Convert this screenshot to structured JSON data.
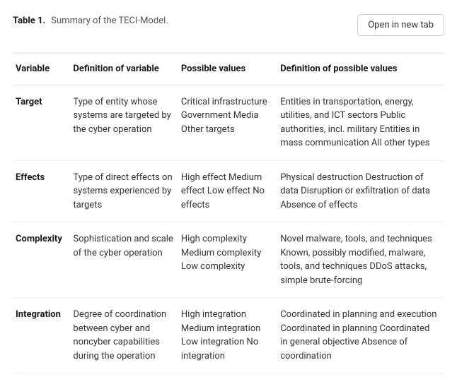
{
  "header": {
    "table_label": "Table 1.",
    "caption": "Summary of the TECI-Model.",
    "open_button": "Open in new tab"
  },
  "table": {
    "columns": [
      "Variable",
      "Definition of variable",
      "Possible values",
      "Definition of possible values"
    ],
    "rows": [
      {
        "variable": "Target",
        "definition": "Type of entity whose systems are targeted by the cyber operation",
        "values": "Critical infrastructure Government Media Other targets",
        "values_def": "Entities in transportation, energy, utilities, and ICT sectors Public authorities, incl. military Entities in mass communication All other types"
      },
      {
        "variable": "Effects",
        "definition": "Type of direct effects on systems experienced by targets",
        "values": "High effect Medium effect Low effect No effects",
        "values_def": "Physical destruction Destruction of data Disruption or exfiltration of data Absence of effects"
      },
      {
        "variable": "Complexity",
        "definition": "Sophistication and scale of the cyber operation",
        "values": "High complexity Medium complexity Low complexity",
        "values_def": "Novel malware, tools, and techniques Known, possibly modified, malware, tools, and techniques DDoS attacks, simple brute-forcing"
      },
      {
        "variable": "Integration",
        "definition": "Degree of coordination between cyber and noncyber capabilities during the operation",
        "values": "High integration Medium integration Low integration No integration",
        "values_def": "Coordinated in planning and execution Coordinated in planning Coordinated in general objective Absence of coordination"
      }
    ]
  }
}
